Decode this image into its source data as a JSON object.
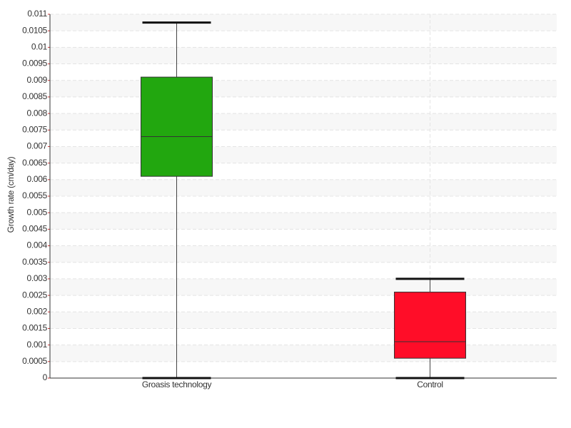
{
  "chart_data": {
    "type": "box",
    "y_label": "Growth rate (cm/day)",
    "categories": [
      "Groasis technology",
      "Control"
    ],
    "boxes": [
      {
        "low": 0,
        "q1": 0.0061,
        "median": 0.0073,
        "q3": 0.0091,
        "high": 0.01075,
        "color": "#22a70f"
      },
      {
        "low": 0,
        "q1": 0.0006,
        "median": 0.0011,
        "q3": 0.0026,
        "high": 0.003,
        "color": "#ff0d28"
      }
    ],
    "ylim": [
      0,
      0.011
    ],
    "yticks": [
      0,
      0.0005,
      0.001,
      0.0015,
      0.002,
      0.0025,
      0.003,
      0.0035,
      0.004,
      0.0045,
      0.005,
      0.0055,
      0.006,
      0.0065,
      0.007,
      0.0075,
      0.008,
      0.0085,
      0.009,
      0.0095,
      0.01,
      0.0105,
      0.011
    ],
    "grid": true
  }
}
